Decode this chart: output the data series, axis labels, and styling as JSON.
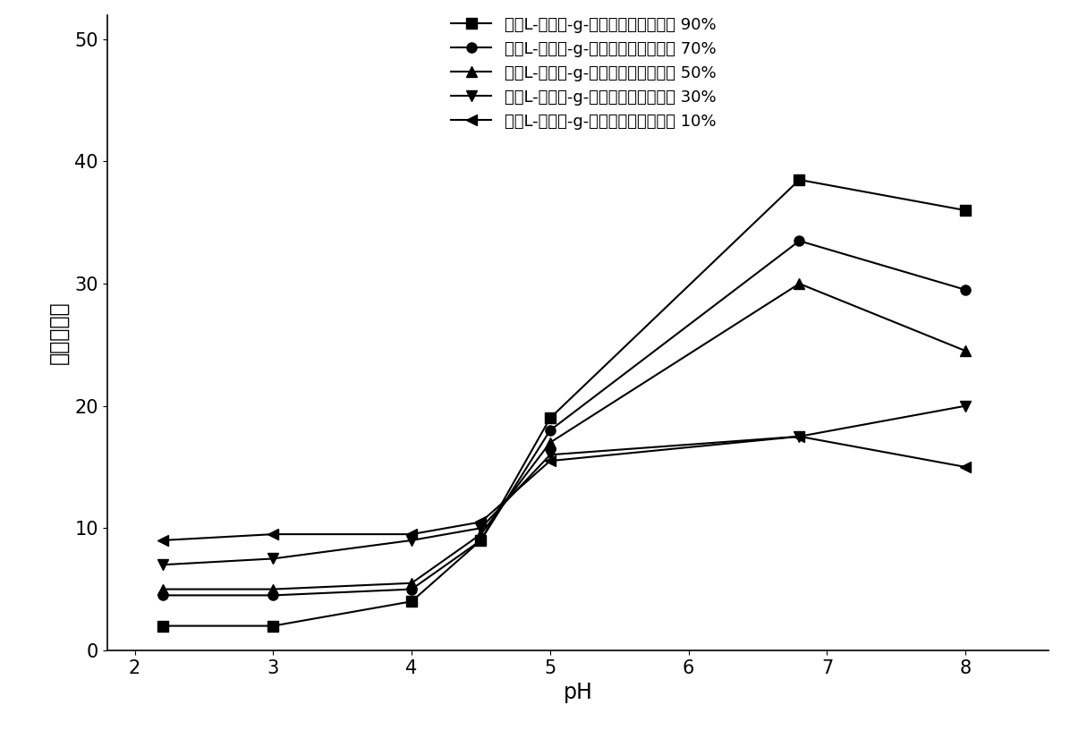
{
  "series": [
    {
      "label": "聚（L-谷氨酸-g-甲基丙烯酸羟乙酯） 90%",
      "x": [
        2.2,
        3,
        4,
        4.5,
        5,
        6.8,
        8
      ],
      "y": [
        2.0,
        2.0,
        4.0,
        9.0,
        19.0,
        38.5,
        36.0
      ],
      "marker": "s",
      "markersize": 8
    },
    {
      "label": "聚（L-谷氨酸-g-甲基丙烯酸羟乙酯） 70%",
      "x": [
        2.2,
        3,
        4,
        4.5,
        5,
        6.8,
        8
      ],
      "y": [
        4.5,
        4.5,
        5.0,
        9.0,
        18.0,
        33.5,
        29.5
      ],
      "marker": "o",
      "markersize": 8
    },
    {
      "label": "聚（L-谷氨酸-g-甲基丙烯酸羟乙酯） 50%",
      "x": [
        2.2,
        3,
        4,
        4.5,
        5,
        6.8,
        8
      ],
      "y": [
        5.0,
        5.0,
        5.5,
        9.5,
        17.0,
        30.0,
        24.5
      ],
      "marker": "^",
      "markersize": 8
    },
    {
      "label": "聚（L-谷氨酸-g-甲基丙烯酸羟乙酯） 30%",
      "x": [
        2.2,
        3,
        4,
        4.5,
        5,
        6.8,
        8
      ],
      "y": [
        7.0,
        7.5,
        9.0,
        10.0,
        16.0,
        17.5,
        20.0
      ],
      "marker": "v",
      "markersize": 8
    },
    {
      "label": "聚（L-谷氨酸-g-甲基丙烯酸羟乙酯） 10%",
      "x": [
        2.2,
        3,
        4,
        4.5,
        5,
        6.8,
        8
      ],
      "y": [
        9.0,
        9.5,
        9.5,
        10.5,
        15.5,
        17.5,
        15.0
      ],
      "marker": "<",
      "markersize": 8
    }
  ],
  "xlabel": "pH",
  "ylabel": "平衡溶胀率",
  "xlim": [
    1.8,
    8.6
  ],
  "ylim": [
    0,
    52
  ],
  "xticks": [
    2,
    3,
    4,
    5,
    6,
    7,
    8
  ],
  "yticks": [
    0,
    10,
    20,
    30,
    40,
    50
  ],
  "line_color": "#000000",
  "bg_color": "#ffffff",
  "font_size_axis_label": 17,
  "font_size_tick": 15,
  "font_size_legend": 13
}
